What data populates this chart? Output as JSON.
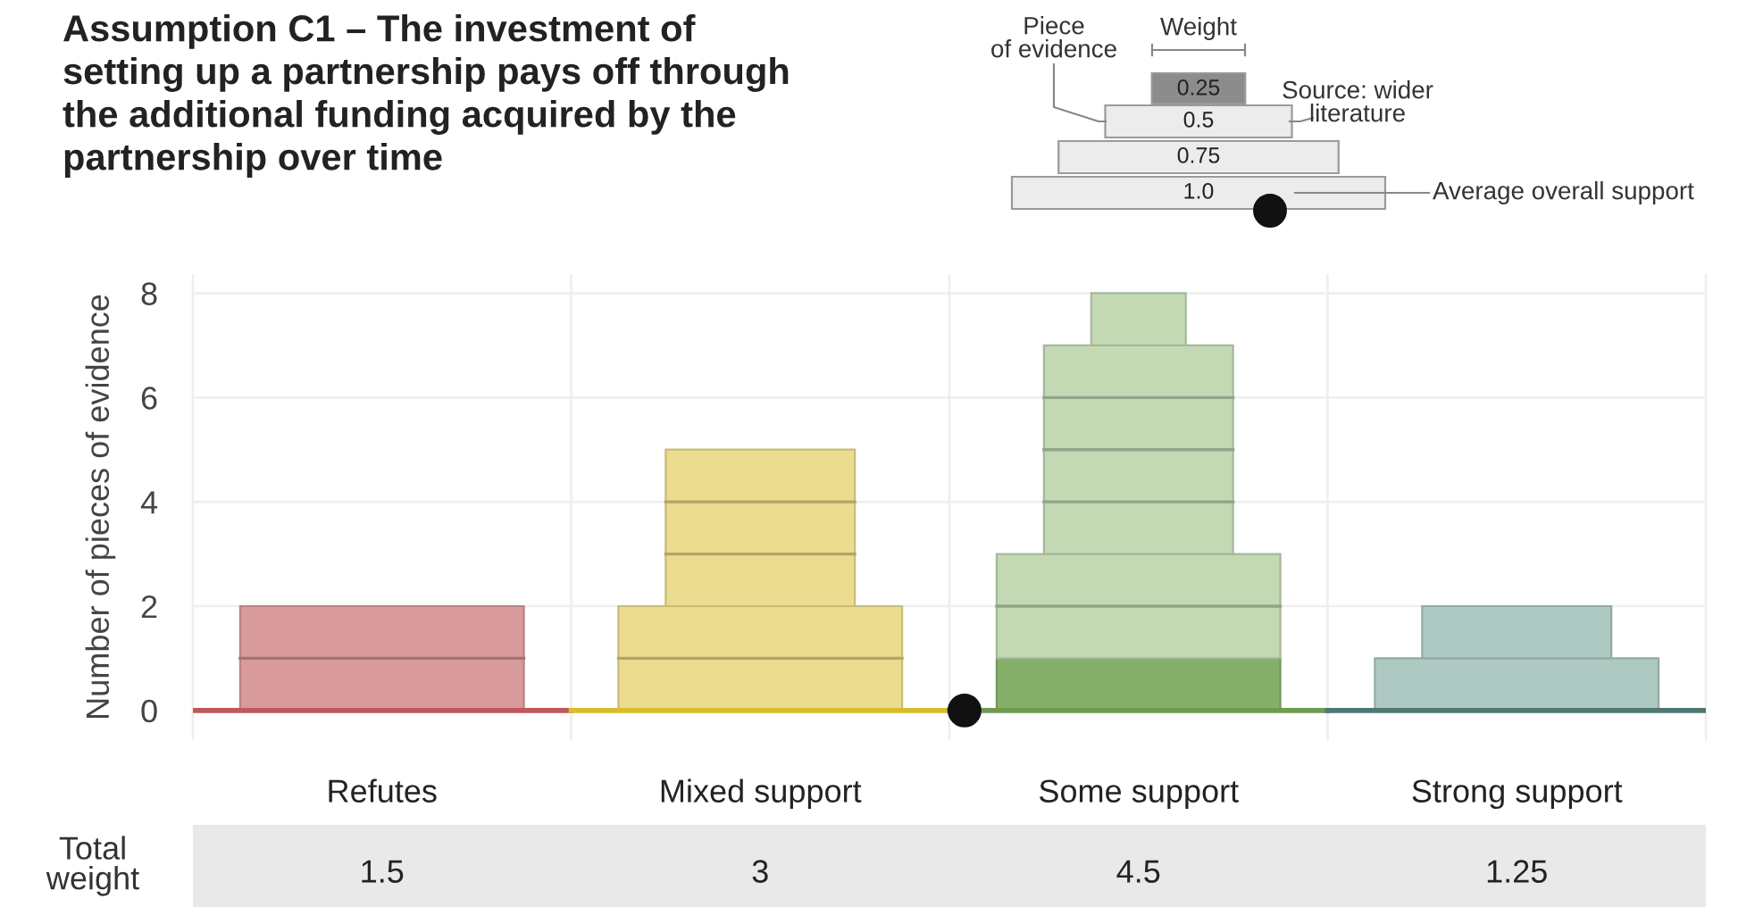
{
  "chart_data": {
    "type": "bar",
    "stacked": true,
    "title": "Assumption C1 – The investment of\nsetting up a partnership pays off through\nthe additional funding acquired by the\npartnership over time",
    "ylabel": "Number of pieces of evidence",
    "categories": [
      "Refutes",
      "Mixed support",
      "Some support",
      "Strong support"
    ],
    "ylim": [
      -0.55,
      8.35
    ],
    "yticks": [
      0,
      2,
      4,
      6,
      8
    ],
    "grid": true,
    "series": [
      {
        "colors": [
          "#d99a9c",
          "#ecdc8f",
          "#86b06a",
          "#aec8c2"
        ],
        "values": [
          0,
          0,
          1,
          0
        ]
      },
      {
        "colors": [
          "#d99a9c",
          "#ecdc8f",
          "#c3d9b4",
          "#aec8c2"
        ],
        "values": [
          2,
          2,
          2,
          1
        ]
      },
      {
        "colors": [
          "#d99a9c",
          "#ecdc8f",
          "#c3d9b4",
          "#aec8c2"
        ],
        "values": [
          0,
          3,
          4,
          1
        ]
      },
      {
        "colors": [
          "#d99a9c",
          "#ecdc8f",
          "#c3d9b4",
          "#aec8c2"
        ],
        "values": [
          0,
          0,
          1,
          0
        ]
      }
    ],
    "ref_lines": [
      {
        "axis": "y",
        "value": 0,
        "color": "#c0585c"
      },
      {
        "axis": "y",
        "value": 0,
        "color": "#d8bd2c"
      },
      {
        "axis": "y",
        "value": 0,
        "color": "#6e9a52"
      },
      {
        "axis": "y",
        "value": 0,
        "color": "#4f7872"
      }
    ],
    "annotations": [
      "Piece\nof evidence",
      "Weight",
      "Source: wider\nliterature",
      "Average overall support",
      "Total\nweight",
      "1.5",
      "3",
      "4.5",
      "1.25",
      "0.25",
      "0.5",
      "0.75",
      "1.0"
    ]
  }
}
